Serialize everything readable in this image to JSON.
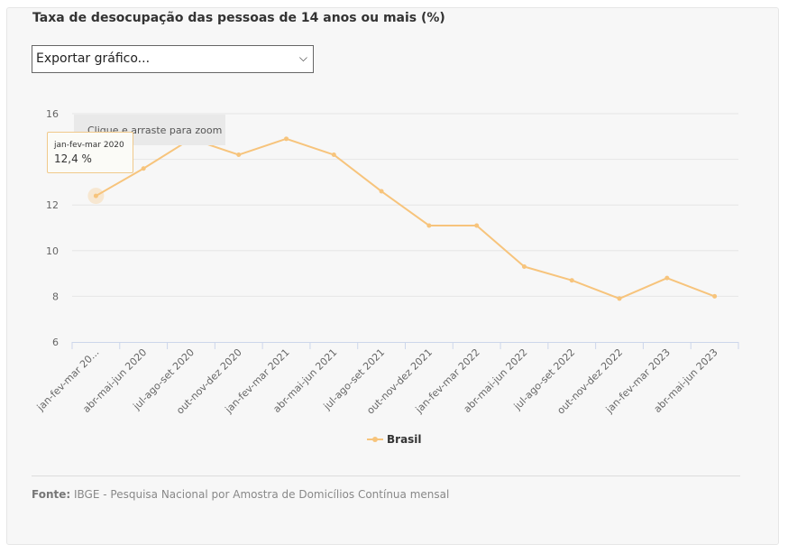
{
  "title": "Taxa de desocupação das pessoas de 14 anos ou mais (%)",
  "export": {
    "label": "Exportar gráfico..."
  },
  "zoom_hint": "Clique e arraste para zoom",
  "tooltip": {
    "category": "jan-fev-mar 2020",
    "value": "12,4 %"
  },
  "footer": {
    "label": "Fonte:",
    "text": "IBGE - Pesquisa Nacional por Amostra de Domicílios Contínua mensal"
  },
  "colors": {
    "series": "#f7c47c",
    "grid": "#e6e6e6",
    "axis": "#ccd6eb"
  },
  "chart_data": {
    "type": "line",
    "categories": [
      "jan-fev-mar 20...",
      "abr-mai-jun 2020",
      "jul-ago-set 2020",
      "out-nov-dez 2020",
      "jan-fev-mar 2021",
      "abr-mai-jun 2021",
      "jul-ago-set 2021",
      "out-nov-dez 2021",
      "jan-fev-mar 2022",
      "abr-mai-jun 2022",
      "jul-ago-set 2022",
      "out-nov-dez 2022",
      "jan-fev-mar 2023",
      "abr-mai-jun 2023"
    ],
    "series": [
      {
        "name": "Brasil",
        "values": [
          12.4,
          13.6,
          14.9,
          14.2,
          14.9,
          14.2,
          12.6,
          11.1,
          11.1,
          9.3,
          8.7,
          7.9,
          8.8,
          8.0
        ]
      }
    ],
    "yticks": [
      6,
      8,
      10,
      12,
      14,
      16
    ],
    "ylim": [
      6,
      16
    ],
    "grid": true,
    "legend": "bottom-center"
  }
}
